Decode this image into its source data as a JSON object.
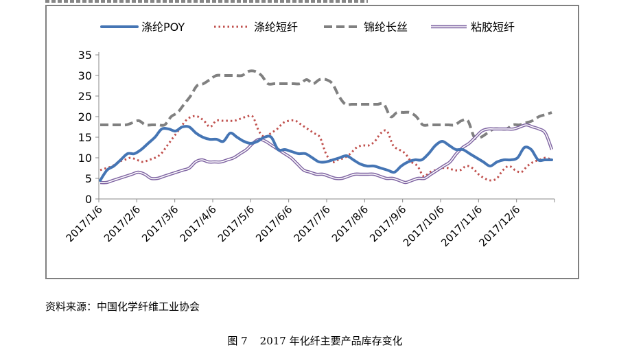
{
  "chart_data": {
    "type": "line",
    "title": "",
    "xlabel": "",
    "ylabel": "",
    "ylim": [
      0,
      35
    ],
    "yticks": [
      0,
      5,
      10,
      15,
      20,
      25,
      30,
      35
    ],
    "x_tick_labels": [
      "2017/1/6",
      "2017/2/6",
      "2017/3/6",
      "2017/4/6",
      "2017/5/6",
      "2017/6/6",
      "2017/7/6",
      "2017/8/6",
      "2017/9/6",
      "2017/10/6",
      "2017/11/6",
      "2017/12/6"
    ],
    "legend_position": "top",
    "series": [
      {
        "name": "涤纶POY",
        "color": "#4575b4",
        "style": "solid",
        "values": [
          4.5,
          7,
          8,
          9.5,
          11,
          11,
          12,
          13.5,
          15,
          17,
          17,
          16.5,
          17.5,
          17.5,
          16,
          15,
          14.5,
          14.5,
          14,
          16,
          15,
          14,
          13.5,
          14,
          15,
          15,
          12,
          12,
          11.5,
          11,
          11,
          10,
          9,
          9,
          9.5,
          10,
          10.5,
          9.5,
          8.5,
          8,
          8,
          7.5,
          7,
          6.5,
          8,
          9,
          9.5,
          9.5,
          11,
          13,
          14,
          13,
          12,
          12,
          11,
          10,
          9,
          8,
          9,
          9.5,
          9.5,
          10,
          12.5,
          12,
          9.5,
          9.5,
          9.5
        ]
      },
      {
        "name": "涤纶短纤",
        "color": "#c0504d",
        "style": "dotted",
        "values": [
          7,
          7.5,
          8,
          9,
          9.5,
          10,
          9.5,
          9,
          9.5,
          10,
          11,
          13,
          15,
          17,
          19,
          20,
          20,
          19,
          17.5,
          19,
          19,
          19,
          19,
          19.5,
          20,
          20,
          16.5,
          15,
          16,
          17,
          18.5,
          19,
          19,
          18,
          17,
          16,
          15,
          11,
          9,
          9.5,
          10,
          11,
          12.5,
          13,
          13,
          14,
          16,
          16.5,
          13,
          12,
          11,
          9,
          8,
          5.5,
          6.5,
          7,
          7.5,
          7.5,
          7,
          7,
          8,
          7.5,
          6,
          5,
          4.5,
          5,
          7,
          8,
          7,
          6.5,
          8,
          9,
          9.5,
          10,
          9.5
        ]
      },
      {
        "name": "锦纶长丝",
        "color": "#808080",
        "style": "dashed",
        "values": [
          18,
          18,
          18,
          18,
          18,
          18.5,
          19,
          18,
          18,
          18,
          18,
          20,
          21,
          23,
          25,
          27.5,
          28,
          29,
          30,
          30,
          30,
          30,
          30,
          31,
          31,
          30,
          28,
          28,
          28,
          28,
          28,
          28,
          29,
          28,
          29,
          29,
          28,
          25,
          23,
          23,
          23,
          23,
          23,
          23,
          23,
          20,
          21,
          21,
          21,
          20,
          18,
          18,
          18,
          18,
          18,
          18,
          19,
          19,
          15,
          15,
          16,
          17,
          17,
          17,
          18,
          18,
          18.5,
          19,
          20,
          20.5,
          21
        ]
      },
      {
        "name": "粘胶短纤",
        "color": "#7f64a2",
        "style": "double",
        "values": [
          4,
          4,
          4.5,
          5,
          5.5,
          6,
          6.5,
          6,
          5,
          5,
          5.5,
          6,
          6.5,
          7,
          7.5,
          9,
          9.5,
          9,
          9,
          9,
          9.5,
          10,
          11,
          12,
          13.5,
          14.5,
          14,
          13,
          12,
          11,
          10,
          8.5,
          7,
          6.5,
          6,
          6,
          5.5,
          5,
          5,
          5.5,
          6,
          6,
          6,
          6,
          5.5,
          5,
          5,
          4.5,
          4,
          4.5,
          5,
          5,
          6,
          7,
          8,
          9,
          11,
          12.5,
          13.5,
          15,
          16.5,
          17,
          17,
          17,
          17,
          17,
          17.5,
          18,
          17.5,
          17,
          16,
          12
        ]
      }
    ]
  },
  "source": "资料来源：中国化学纤维工业协会",
  "caption": {
    "number": "图 7",
    "text": "2017 年化纤主要产品库存变化"
  }
}
